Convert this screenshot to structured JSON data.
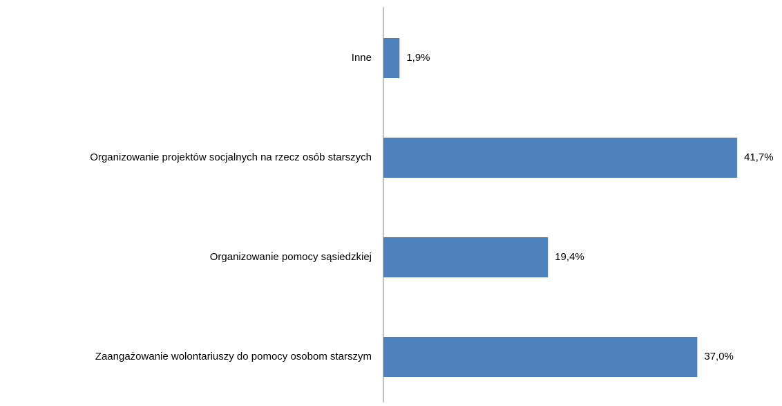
{
  "chart_data": {
    "type": "hbar",
    "categories": [
      "Inne",
      "Organizowanie projektów socjalnych na rzecz osób starszych",
      "Organizowanie pomocy sąsiedzkiej",
      "Zaangażowanie wolontariuszy do pomocy osobom starszym"
    ],
    "values": [
      1.9,
      41.7,
      19.4,
      37.0
    ],
    "value_labels": [
      "1,9%",
      "41,7%",
      "19,4%",
      "37,0%"
    ],
    "color": "#4f81bd",
    "xlim": [
      0,
      45
    ]
  }
}
